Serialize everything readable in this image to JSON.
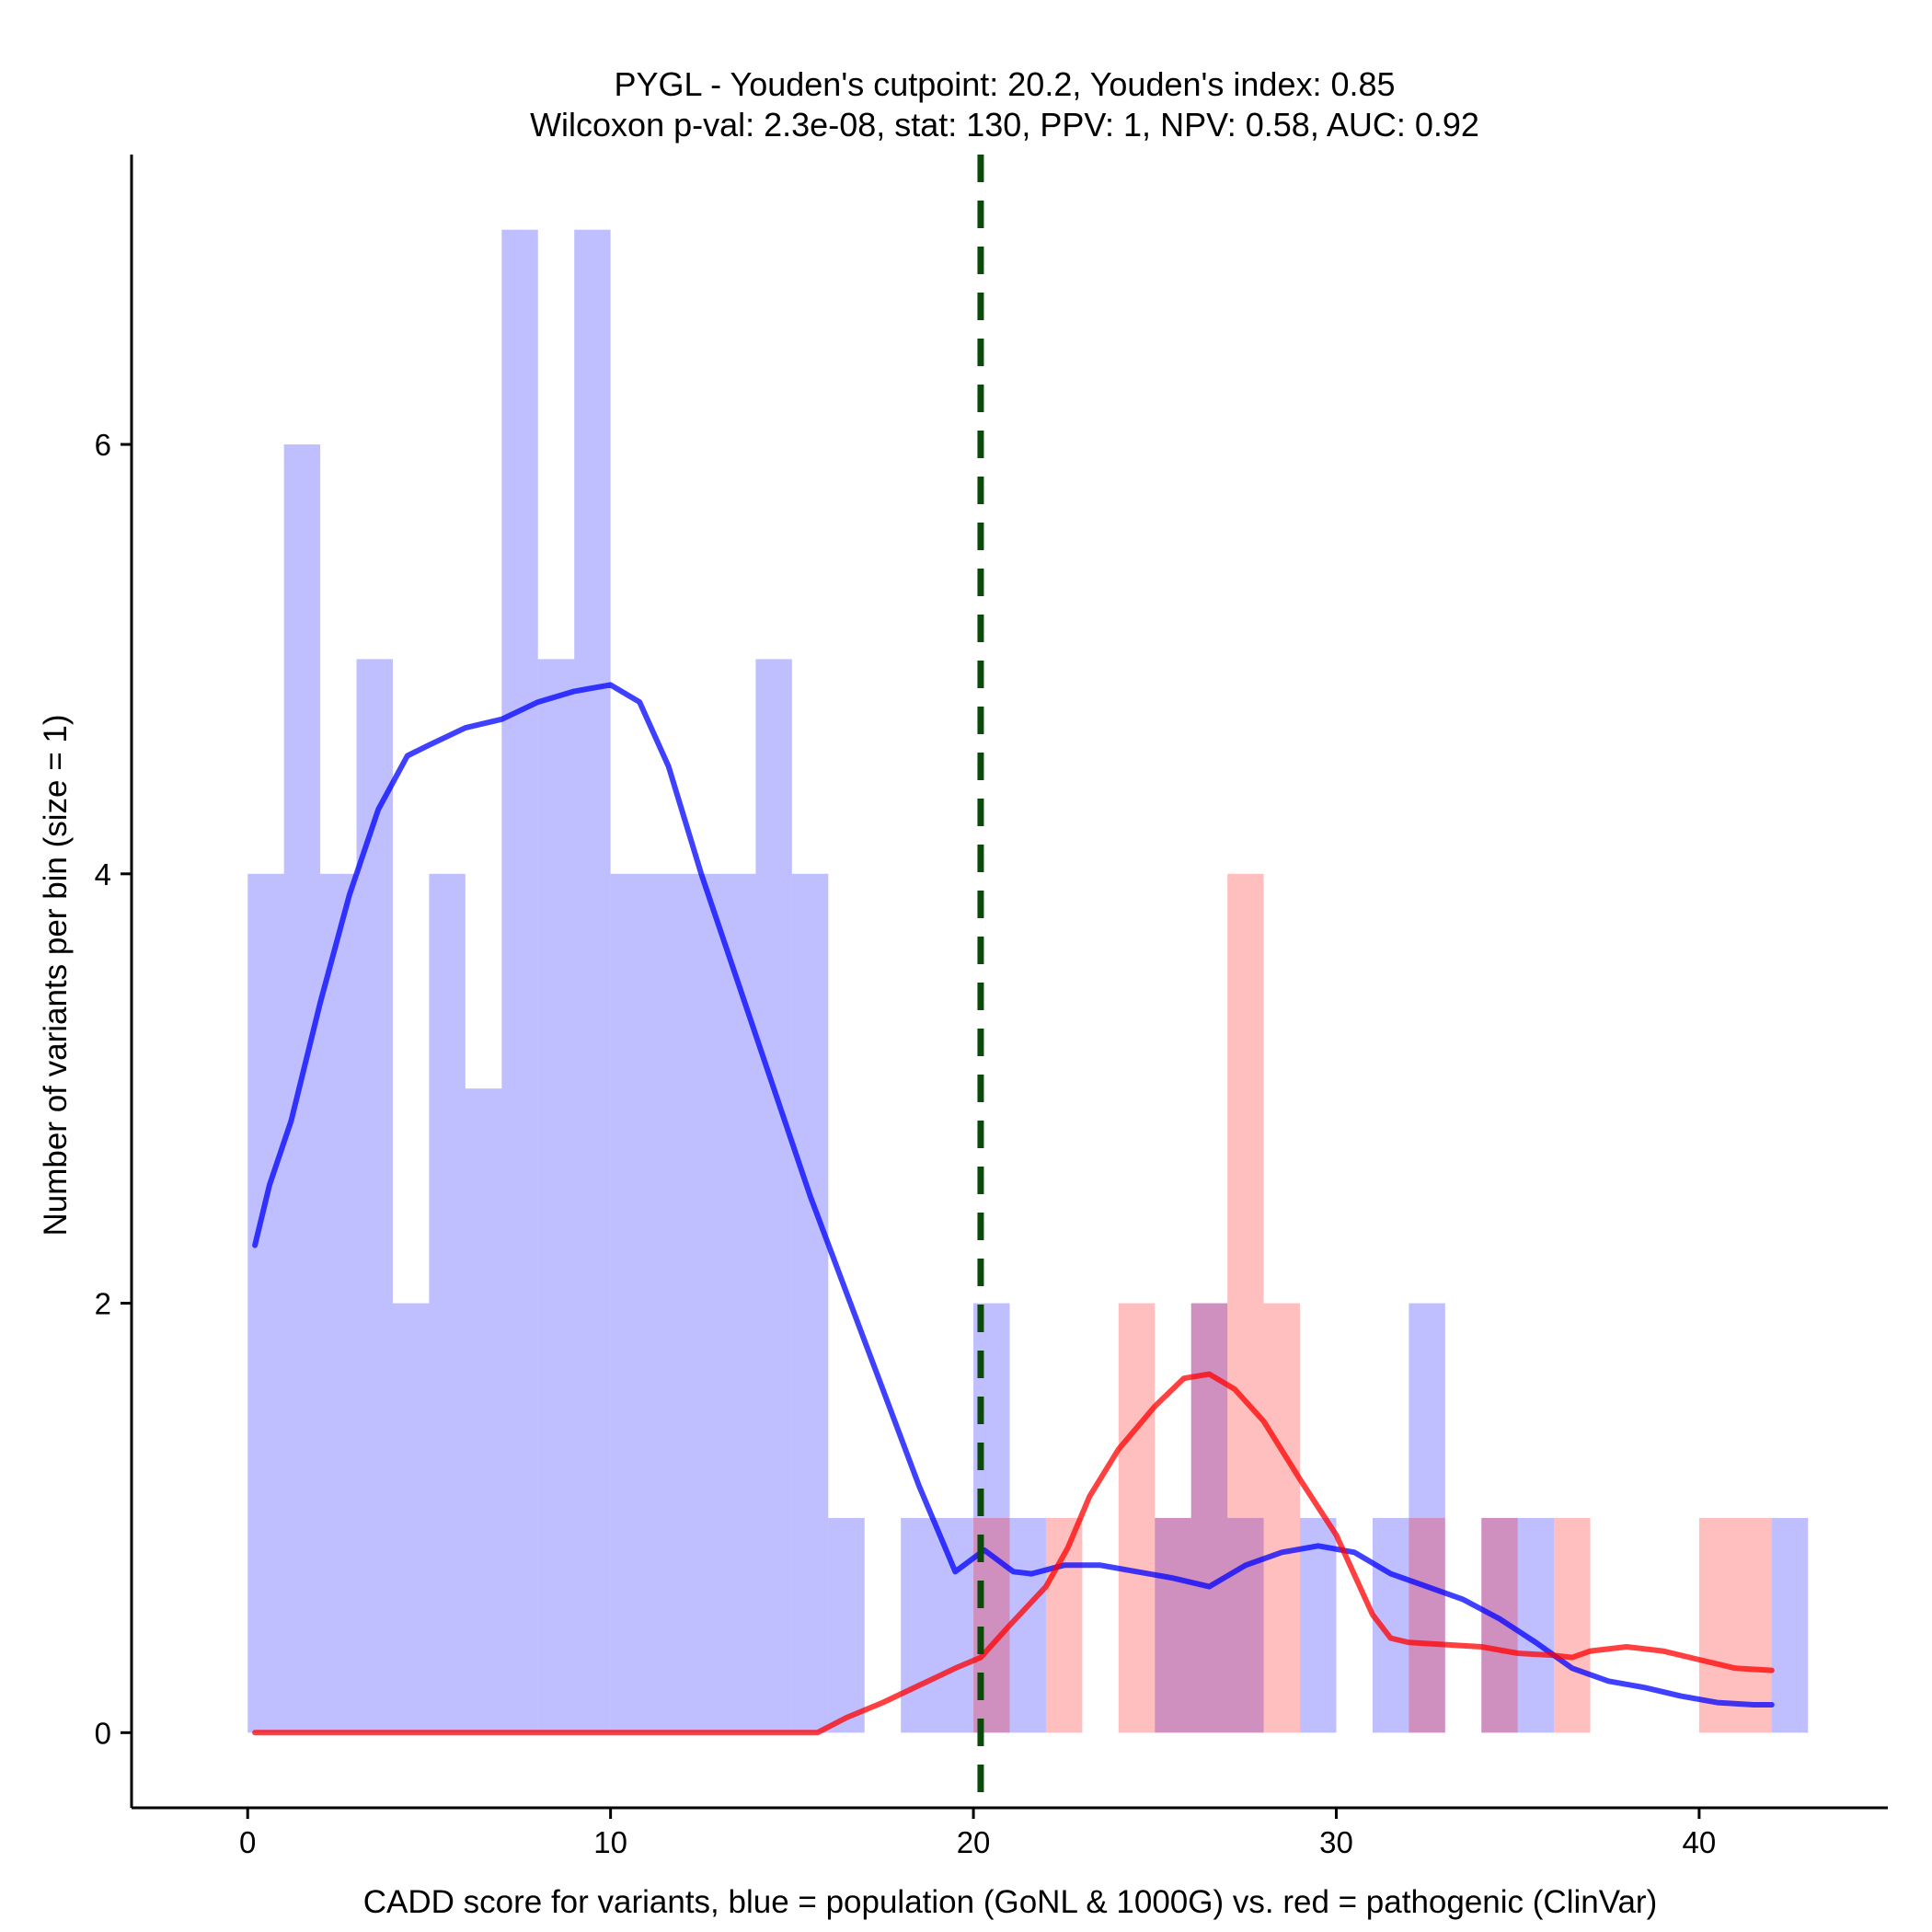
{
  "chart_data": {
    "type": "histogram",
    "title": "PYGL - Youden's cutpoint: 20.2, Youden's index: 0.85",
    "subtitle": "Wilcoxon p-val: 2.3e-08, stat: 130, PPV: 1, NPV: 0.58, AUC: 0.92",
    "xlabel": "CADD score for variants, blue = population (GoNL & 1000G) vs. red = pathogenic (ClinVar)",
    "ylabel": "Number of variants per bin (size = 1)",
    "xlim": [
      -3.2,
      45.2
    ],
    "ylim": [
      -0.35,
      7.35
    ],
    "x_ticks": [
      0,
      10,
      20,
      30,
      40
    ],
    "y_ticks": [
      0,
      2,
      4,
      6
    ],
    "bin_size": 1,
    "cutpoint": 20.2,
    "series": [
      {
        "name": "population (GoNL & 1000G)",
        "color": "#0000FF",
        "bins": [
          {
            "start": 0,
            "count": 4
          },
          {
            "start": 1,
            "count": 6
          },
          {
            "start": 2,
            "count": 4
          },
          {
            "start": 3,
            "count": 5
          },
          {
            "start": 4,
            "count": 2
          },
          {
            "start": 5,
            "count": 4
          },
          {
            "start": 6,
            "count": 3
          },
          {
            "start": 7,
            "count": 7
          },
          {
            "start": 8,
            "count": 5
          },
          {
            "start": 9,
            "count": 7
          },
          {
            "start": 10,
            "count": 4
          },
          {
            "start": 11,
            "count": 4
          },
          {
            "start": 12,
            "count": 4
          },
          {
            "start": 13,
            "count": 4
          },
          {
            "start": 14,
            "count": 5
          },
          {
            "start": 15,
            "count": 4
          },
          {
            "start": 16,
            "count": 1
          },
          {
            "start": 18,
            "count": 1
          },
          {
            "start": 19,
            "count": 1
          },
          {
            "start": 20,
            "count": 2
          },
          {
            "start": 21,
            "count": 1
          },
          {
            "start": 25,
            "count": 1
          },
          {
            "start": 26,
            "count": 2
          },
          {
            "start": 27,
            "count": 1
          },
          {
            "start": 29,
            "count": 1
          },
          {
            "start": 31,
            "count": 1
          },
          {
            "start": 32,
            "count": 2
          },
          {
            "start": 34,
            "count": 1
          },
          {
            "start": 35,
            "count": 1
          },
          {
            "start": 42,
            "count": 1
          }
        ],
        "density": [
          [
            0.2,
            2.27
          ],
          [
            0.6,
            2.55
          ],
          [
            1.2,
            2.85
          ],
          [
            2,
            3.4
          ],
          [
            2.8,
            3.9
          ],
          [
            3.6,
            4.3
          ],
          [
            4.4,
            4.55
          ],
          [
            5,
            4.6
          ],
          [
            6,
            4.68
          ],
          [
            7,
            4.72
          ],
          [
            8,
            4.8
          ],
          [
            9,
            4.85
          ],
          [
            10,
            4.88
          ],
          [
            10.8,
            4.8
          ],
          [
            11.6,
            4.5
          ],
          [
            12.5,
            4.0
          ],
          [
            13.5,
            3.5
          ],
          [
            14.5,
            3.0
          ],
          [
            15.5,
            2.5
          ],
          [
            16.5,
            2.05
          ],
          [
            17.5,
            1.6
          ],
          [
            18.5,
            1.15
          ],
          [
            19.5,
            0.75
          ],
          [
            20.3,
            0.85
          ],
          [
            21.1,
            0.75
          ],
          [
            21.6,
            0.74
          ],
          [
            22.5,
            0.78
          ],
          [
            23.5,
            0.78
          ],
          [
            24.5,
            0.75
          ],
          [
            25.5,
            0.72
          ],
          [
            26.5,
            0.68
          ],
          [
            27.5,
            0.78
          ],
          [
            28.5,
            0.84
          ],
          [
            29.5,
            0.87
          ],
          [
            30.5,
            0.84
          ],
          [
            31.5,
            0.74
          ],
          [
            32.5,
            0.68
          ],
          [
            33.5,
            0.62
          ],
          [
            34.5,
            0.53
          ],
          [
            35.5,
            0.42
          ],
          [
            36.5,
            0.3
          ],
          [
            37.5,
            0.24
          ],
          [
            38.5,
            0.21
          ],
          [
            39.5,
            0.17
          ],
          [
            40.5,
            0.14
          ],
          [
            41.5,
            0.13
          ],
          [
            42,
            0.13
          ]
        ]
      },
      {
        "name": "pathogenic (ClinVar)",
        "color": "#FF0000",
        "bins": [
          {
            "start": 20,
            "count": 1
          },
          {
            "start": 22,
            "count": 1
          },
          {
            "start": 24,
            "count": 2
          },
          {
            "start": 25,
            "count": 1
          },
          {
            "start": 26,
            "count": 2
          },
          {
            "start": 27,
            "count": 4
          },
          {
            "start": 28,
            "count": 2
          },
          {
            "start": 32,
            "count": 1
          },
          {
            "start": 34,
            "count": 1
          },
          {
            "start": 36,
            "count": 1
          },
          {
            "start": 40,
            "count": 1
          },
          {
            "start": 41,
            "count": 1
          }
        ],
        "density": [
          [
            0.2,
            0.0
          ],
          [
            5,
            0.0
          ],
          [
            10,
            0.0
          ],
          [
            15.7,
            0.0
          ],
          [
            16.5,
            0.07
          ],
          [
            17.5,
            0.14
          ],
          [
            18.5,
            0.22
          ],
          [
            19.5,
            0.3
          ],
          [
            20.2,
            0.35
          ],
          [
            21,
            0.5
          ],
          [
            22,
            0.68
          ],
          [
            22.6,
            0.86
          ],
          [
            23.2,
            1.1
          ],
          [
            24,
            1.32
          ],
          [
            25,
            1.52
          ],
          [
            25.8,
            1.65
          ],
          [
            26.5,
            1.67
          ],
          [
            27.2,
            1.6
          ],
          [
            28,
            1.45
          ],
          [
            29,
            1.18
          ],
          [
            30,
            0.92
          ],
          [
            31,
            0.55
          ],
          [
            31.5,
            0.44
          ],
          [
            32,
            0.42
          ],
          [
            33,
            0.41
          ],
          [
            34,
            0.4
          ],
          [
            35,
            0.37
          ],
          [
            36,
            0.36
          ],
          [
            36.5,
            0.35
          ],
          [
            37,
            0.38
          ],
          [
            38,
            0.4
          ],
          [
            39,
            0.38
          ],
          [
            40,
            0.34
          ],
          [
            41,
            0.3
          ],
          [
            42,
            0.29
          ]
        ]
      }
    ]
  }
}
